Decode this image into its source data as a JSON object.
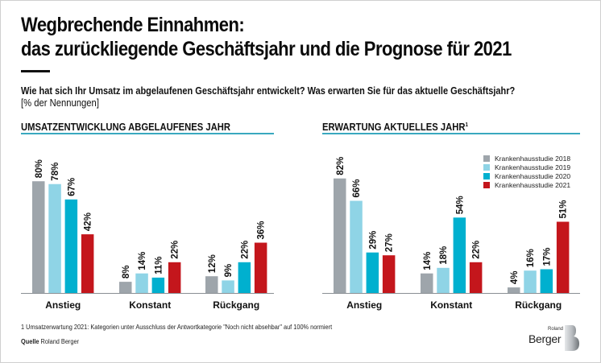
{
  "header": {
    "title_line1": "Wegbrechende Einnahmen:",
    "title_line2": "das zurückliegende Geschäftsjahr und die Prognose für 2021",
    "question": "Wie hat sich Ihr Umsatz im abgelaufenen Geschäftsjahr entwickelt? Was erwarten Sie für das aktuelle Geschäftsjahr?",
    "unit": "[% der Nennungen]"
  },
  "colors": {
    "series_2018": "#9ea5ab",
    "series_2019": "#8fd4e6",
    "series_2020": "#00b0cf",
    "series_2021": "#c4161c",
    "section_line": "#3aa8bf"
  },
  "legend": [
    {
      "label": "Krankenhausstudie 2018",
      "color": "#9ea5ab"
    },
    {
      "label": "Krankenhausstudie 2019",
      "color": "#8fd4e6"
    },
    {
      "label": "Krankenhausstudie 2020",
      "color": "#00b0cf"
    },
    {
      "label": "Krankenhausstudie 2021",
      "color": "#c4161c"
    }
  ],
  "chart_data": [
    {
      "type": "bar",
      "title": "UMSATZENTWICKLUNG ABGELAUFENES JAHR",
      "title_sup": "",
      "categories": [
        "Anstieg",
        "Konstant",
        "Rückgang"
      ],
      "series": [
        {
          "name": "Krankenhausstudie 2018",
          "values": [
            80,
            8,
            12
          ]
        },
        {
          "name": "Krankenhausstudie 2019",
          "values": [
            78,
            14,
            9
          ]
        },
        {
          "name": "Krankenhausstudie 2020",
          "values": [
            67,
            11,
            22
          ]
        },
        {
          "name": "Krankenhausstudie 2021",
          "values": [
            42,
            22,
            36
          ]
        }
      ],
      "value_suffix": "%",
      "xlabel": "",
      "ylabel": "",
      "ylim": [
        0,
        100
      ],
      "grid": false,
      "legend": "none"
    },
    {
      "type": "bar",
      "title": "ERWARTUNG AKTUELLES JAHR",
      "title_sup": "1",
      "categories": [
        "Anstieg",
        "Konstant",
        "Rückgang"
      ],
      "series": [
        {
          "name": "Krankenhausstudie 2018",
          "values": [
            82,
            14,
            4
          ]
        },
        {
          "name": "Krankenhausstudie 2019",
          "values": [
            66,
            18,
            16
          ]
        },
        {
          "name": "Krankenhausstudie 2020",
          "values": [
            29,
            54,
            17
          ]
        },
        {
          "name": "Krankenhausstudie 2021",
          "values": [
            27,
            22,
            51
          ]
        }
      ],
      "value_suffix": "%",
      "xlabel": "",
      "ylabel": "",
      "ylim": [
        0,
        100
      ],
      "grid": false,
      "legend": "top-right"
    }
  ],
  "footer": {
    "footnote": "1 Umsatzerwartung 2021: Kategorien unter Ausschluss der Antwortkategorie \"Noch nicht absehbar\" auf 100% normiert",
    "source_label": "Quelle",
    "source_text": "Roland Berger",
    "logo_small": "Roland",
    "logo_big": "Berger"
  }
}
